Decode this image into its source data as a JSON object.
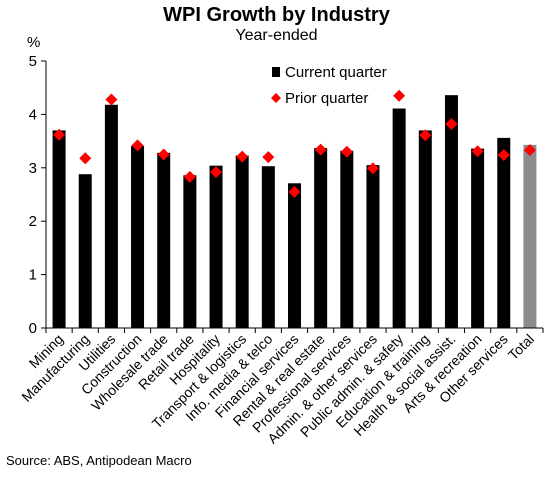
{
  "title": "WPI Growth by Industry",
  "subtitle": "Year-ended",
  "y_unit": "%",
  "source": "Source: ABS, Antipodean Macro",
  "chart_data": {
    "type": "bar",
    "title": "WPI Growth by Industry",
    "subtitle": "Year-ended",
    "ylabel": "%",
    "ylim": [
      0,
      5
    ],
    "yticks": [
      0,
      1,
      2,
      3,
      4,
      5
    ],
    "grid": false,
    "legend_position": "top-right",
    "categories": [
      "Mining",
      "Manufacturing",
      "Utilities",
      "Construction",
      "Wholesale trade",
      "Retail trade",
      "Hospitality",
      "Transport & logistics",
      "Info. media & telco",
      "Financial services",
      "Rental & real estate",
      "Professional services",
      "Admin. & other services",
      "Public admin. & safety",
      "Education & training",
      "Health & social assist.",
      "Arts & recreation",
      "Other services",
      "Total"
    ],
    "series": [
      {
        "name": "Current quarter",
        "type": "bar",
        "color": "#000000",
        "highlight_color": "#8c8c8c",
        "values": [
          3.7,
          2.88,
          4.18,
          3.41,
          3.28,
          2.86,
          3.04,
          3.23,
          3.03,
          2.71,
          3.37,
          3.32,
          3.05,
          4.11,
          3.7,
          4.36,
          3.36,
          3.56,
          3.43
        ]
      },
      {
        "name": "Prior quarter",
        "type": "marker",
        "color": "#ff0000",
        "values": [
          3.62,
          3.18,
          4.28,
          3.42,
          3.25,
          2.83,
          2.92,
          3.21,
          3.2,
          2.55,
          3.34,
          3.3,
          2.99,
          4.35,
          3.61,
          3.82,
          3.31,
          3.24,
          3.33
        ]
      }
    ]
  }
}
